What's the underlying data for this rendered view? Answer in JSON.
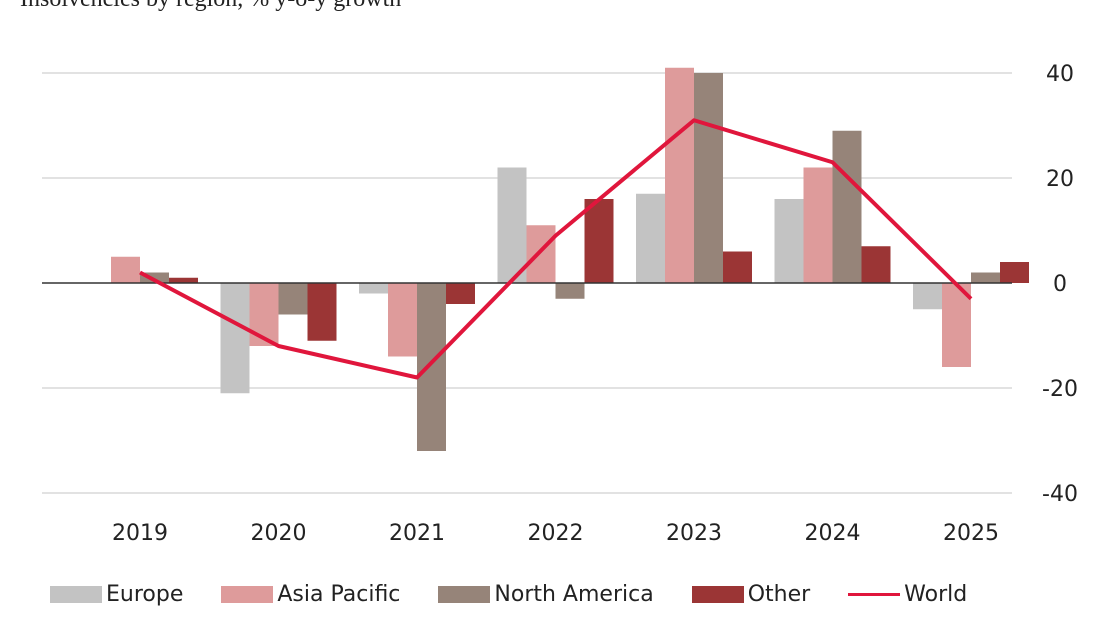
{
  "chart_data": {
    "type": "bar",
    "title": "Insolvencies by region, % y-o-y growth",
    "categories": [
      "2019",
      "2020",
      "2021",
      "2022",
      "2023",
      "2024",
      "2025"
    ],
    "ylim": [
      -40,
      40
    ],
    "yticks": [
      40,
      20,
      0,
      -20,
      -40
    ],
    "series": [
      {
        "name": "Europe",
        "color": "#c3c3c3",
        "values": [
          0,
          -21,
          -2,
          22,
          17,
          16,
          -5
        ]
      },
      {
        "name": "Asia Pacific",
        "color": "#de9b9b",
        "values": [
          5,
          -12,
          -14,
          11,
          41,
          22,
          -16
        ]
      },
      {
        "name": "North America",
        "color": "#968479",
        "values": [
          2,
          -6,
          -32,
          -3,
          40,
          29,
          2
        ]
      },
      {
        "name": "Other",
        "color": "#9b3535",
        "values": [
          1,
          -11,
          -4,
          16,
          6,
          7,
          4
        ]
      }
    ],
    "line_series": {
      "name": "World",
      "color": "#e0163c",
      "values": [
        2,
        -12,
        -18,
        9,
        31,
        23,
        -3
      ]
    },
    "legend": [
      "Europe",
      "Asia Pacific",
      "North America",
      "Other",
      "World"
    ]
  }
}
